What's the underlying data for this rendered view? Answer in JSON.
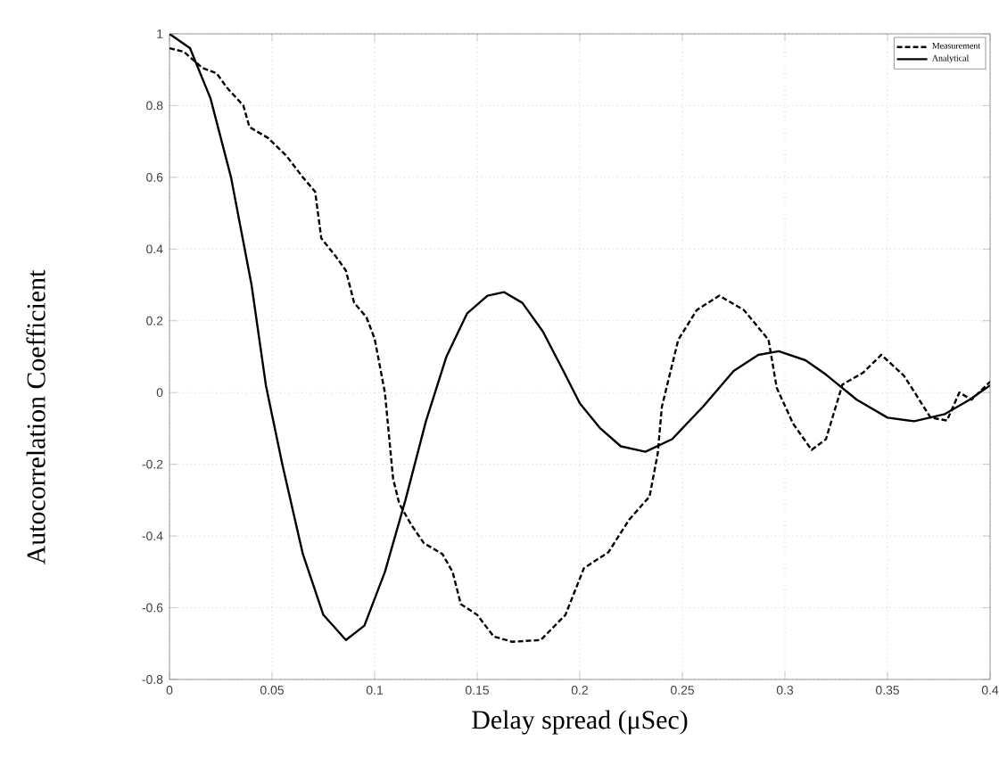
{
  "chart_data": {
    "type": "line",
    "xlabel": "Delay spread (μSec)",
    "ylabel": "Autocorrelation Coefficient",
    "xlim": [
      0,
      0.4
    ],
    "ylim": [
      -0.8,
      1
    ],
    "xticks": [
      0,
      0.05,
      0.1,
      0.15,
      0.2,
      0.25,
      0.3,
      0.35,
      0.4
    ],
    "yticks": [
      -0.8,
      -0.6,
      -0.4,
      -0.2,
      0,
      0.2,
      0.4,
      0.6,
      0.8,
      1
    ],
    "grid": true,
    "legend": "top right",
    "marker": "none",
    "series": [
      {
        "name": "Measurement",
        "color": "#000000",
        "line_style": "dashed",
        "x": [
          0,
          0.007,
          0.016,
          0.023,
          0.028,
          0.036,
          0.039,
          0.048,
          0.057,
          0.065,
          0.071,
          0.074,
          0.081,
          0.086,
          0.09,
          0.096,
          0.1,
          0.105,
          0.109,
          0.112,
          0.118,
          0.124,
          0.133,
          0.138,
          0.142,
          0.15,
          0.158,
          0.167,
          0.181,
          0.193,
          0.202,
          0.214,
          0.224,
          0.234,
          0.238,
          0.24,
          0.248,
          0.257,
          0.268,
          0.28,
          0.292,
          0.296,
          0.304,
          0.313,
          0.32,
          0.328,
          0.338,
          0.347,
          0.358,
          0.371,
          0.379,
          0.385,
          0.391,
          0.4
        ],
        "values": [
          0.96,
          0.95,
          0.905,
          0.89,
          0.85,
          0.8,
          0.74,
          0.71,
          0.66,
          0.6,
          0.56,
          0.43,
          0.38,
          0.34,
          0.25,
          0.21,
          0.15,
          0,
          -0.24,
          -0.31,
          -0.37,
          -0.42,
          -0.45,
          -0.5,
          -0.59,
          -0.62,
          -0.68,
          -0.695,
          -0.69,
          -0.62,
          -0.49,
          -0.445,
          -0.355,
          -0.29,
          -0.17,
          -0.04,
          0.147,
          0.23,
          0.27,
          0.23,
          0.147,
          0.013,
          -0.087,
          -0.16,
          -0.13,
          0.022,
          0.055,
          0.105,
          0.047,
          -0.07,
          -0.078,
          0,
          -0.02,
          0.03
        ]
      },
      {
        "name": "Analytical",
        "color": "#000000",
        "line_style": "solid",
        "x": [
          0,
          0.01,
          0.02,
          0.03,
          0.04,
          0.047,
          0.055,
          0.065,
          0.075,
          0.086,
          0.095,
          0.105,
          0.115,
          0.125,
          0.135,
          0.145,
          0.155,
          0.163,
          0.172,
          0.182,
          0.192,
          0.2,
          0.21,
          0.22,
          0.232,
          0.245,
          0.26,
          0.275,
          0.287,
          0.297,
          0.31,
          0.32,
          0.335,
          0.35,
          0.363,
          0.378,
          0.39,
          0.4
        ],
        "values": [
          1,
          0.96,
          0.82,
          0.6,
          0.3,
          0.02,
          -0.2,
          -0.45,
          -0.62,
          -0.69,
          -0.65,
          -0.5,
          -0.3,
          -0.08,
          0.1,
          0.22,
          0.27,
          0.28,
          0.25,
          0.17,
          0.06,
          -0.03,
          -0.1,
          -0.15,
          -0.165,
          -0.13,
          -0.04,
          0.06,
          0.105,
          0.115,
          0.09,
          0.05,
          -0.02,
          -0.07,
          -0.08,
          -0.06,
          -0.02,
          0.02
        ]
      }
    ]
  }
}
